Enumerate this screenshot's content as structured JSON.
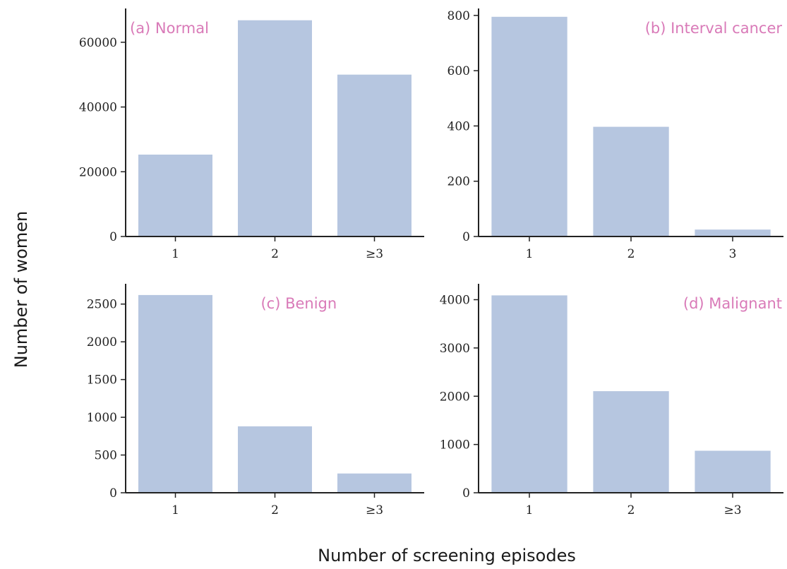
{
  "colors": {
    "bar": "#b6c6e0",
    "axis": "#222222",
    "panel_label": "#d97ab8",
    "text": "#222222"
  },
  "figure": {
    "xlabel": "Number of screening episodes",
    "ylabel": "Number of women"
  },
  "chart_data": [
    {
      "type": "bar",
      "title": "(a) Normal",
      "legend_position": "top-left",
      "categories": [
        "1",
        "2",
        "≥3"
      ],
      "values": [
        25300,
        66800,
        50000
      ],
      "ylim": [
        0,
        70000
      ],
      "yticks": [
        0,
        20000,
        40000,
        60000
      ],
      "ytick_labels": [
        "0",
        "20000",
        "40000",
        "60000"
      ]
    },
    {
      "type": "bar",
      "title": "(b) Interval cancer",
      "legend_position": "top-right",
      "categories": [
        "1",
        "2",
        "3"
      ],
      "values": [
        795,
        397,
        25
      ],
      "ylim": [
        0,
        820
      ],
      "yticks": [
        0,
        200,
        400,
        600,
        800
      ],
      "ytick_labels": [
        "0",
        "200",
        "400",
        "600",
        "800"
      ]
    },
    {
      "type": "bar",
      "title": "(c) Benign",
      "legend_position": "top-center",
      "categories": [
        "1",
        "2",
        "≥3"
      ],
      "values": [
        2620,
        880,
        255
      ],
      "ylim": [
        0,
        2750
      ],
      "yticks": [
        0,
        500,
        1000,
        1500,
        2000,
        2500
      ],
      "ytick_labels": [
        "0",
        "500",
        "1000",
        "1500",
        "2000",
        "2500"
      ]
    },
    {
      "type": "bar",
      "title": "(d) Malignant",
      "legend_position": "top-right",
      "categories": [
        "1",
        "2",
        "≥3"
      ],
      "values": [
        4090,
        2105,
        870
      ],
      "ylim": [
        0,
        4300
      ],
      "yticks": [
        0,
        1000,
        2000,
        3000,
        4000
      ],
      "ytick_labels": [
        "0",
        "1000",
        "2000",
        "3000",
        "4000"
      ]
    }
  ]
}
